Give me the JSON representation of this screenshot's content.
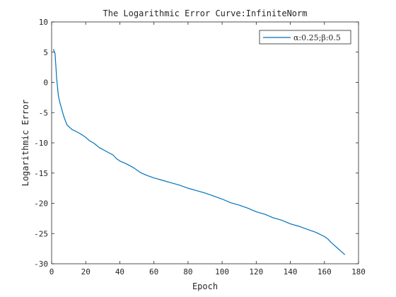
{
  "chart_data": {
    "type": "line",
    "title": "The Logarithmic Error Curve:InfiniteNorm",
    "xlabel": "Epoch",
    "ylabel": "Logarithmic Error",
    "xlim": [
      0,
      180
    ],
    "ylim": [
      -30,
      10
    ],
    "xticks": [
      0,
      20,
      40,
      60,
      80,
      100,
      120,
      140,
      160,
      180
    ],
    "yticks": [
      10,
      5,
      0,
      -5,
      -10,
      -15,
      -20,
      -25,
      -30
    ],
    "grid": false,
    "legend_position": "top-right",
    "series": [
      {
        "name": "α:0.25;β:0.5",
        "color": "#0072bd",
        "x": [
          1,
          2,
          3,
          4,
          5,
          6,
          7,
          8,
          9,
          10,
          12,
          15,
          18,
          20,
          22,
          25,
          28,
          32,
          36,
          38,
          40,
          44,
          48,
          52,
          56,
          60,
          65,
          70,
          75,
          80,
          85,
          90,
          95,
          100,
          105,
          110,
          115,
          120,
          125,
          130,
          135,
          140,
          145,
          150,
          155,
          160,
          162,
          164,
          166,
          168,
          170,
          172
        ],
        "y": [
          5.5,
          4.8,
          0.5,
          -2.3,
          -3.5,
          -4.5,
          -5.5,
          -6.3,
          -7.0,
          -7.3,
          -7.8,
          -8.2,
          -8.7,
          -9.1,
          -9.6,
          -10.1,
          -10.8,
          -11.4,
          -12.0,
          -12.6,
          -13.0,
          -13.5,
          -14.1,
          -14.9,
          -15.4,
          -15.8,
          -16.2,
          -16.6,
          -17.0,
          -17.5,
          -17.9,
          -18.3,
          -18.8,
          -19.3,
          -19.9,
          -20.3,
          -20.8,
          -21.4,
          -21.8,
          -22.4,
          -22.8,
          -23.4,
          -23.8,
          -24.3,
          -24.8,
          -25.5,
          -25.9,
          -26.5,
          -27.0,
          -27.5,
          -28.0,
          -28.5
        ]
      }
    ]
  }
}
